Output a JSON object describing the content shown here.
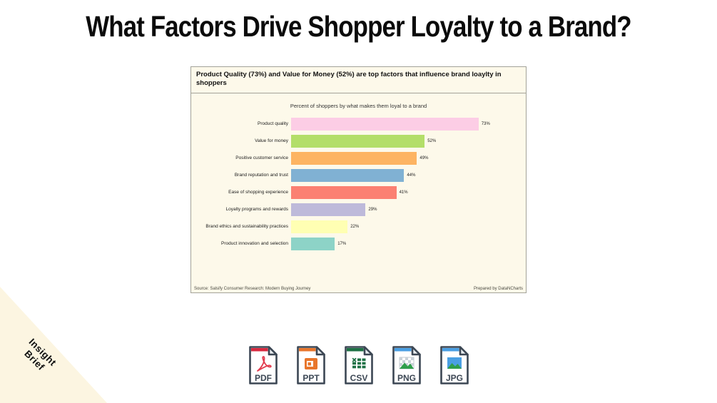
{
  "page": {
    "title": "What Factors Drive Shopper Loyalty to a Brand?",
    "background": "#ffffff"
  },
  "chart_card": {
    "headline": "Product Quality (73%) and Value for Money (52%) are top factors that influence brand loaylty in shoppers",
    "source": "Source: Salsify Consumer Research: Modern Buying Journey",
    "credit": "Prepared by DataNCharts",
    "background": "#fdf9ea",
    "border_color": "#a3a399"
  },
  "chart_data": {
    "type": "bar",
    "orientation": "horizontal",
    "title": "Percent of shoppers by what makes them loyal to a brand",
    "categories": [
      "Product quality",
      "Value for money",
      "Positive customer service",
      "Brand reputation and trust",
      "Ease of shopping experience",
      "Loyalty programs and rewards",
      "Brand ethics and sustainability practices",
      "Product innovation and selection"
    ],
    "values": [
      73,
      52,
      49,
      44,
      41,
      29,
      22,
      17
    ],
    "value_labels": [
      "73%",
      "52%",
      "49%",
      "44%",
      "41%",
      "29%",
      "22%",
      "17%"
    ],
    "bar_colors": [
      "#FCCDE5",
      "#B3DE69",
      "#FDB462",
      "#80B1D3",
      "#FB8072",
      "#BEBADA",
      "#FFFFB3",
      "#8DD3C7"
    ],
    "xlabel": "",
    "ylabel": "",
    "xlim": [
      0,
      100
    ],
    "grid": false,
    "legend": false,
    "value_label_position": "right-of-bar"
  },
  "downloads": [
    {
      "label": "PDF",
      "accent": "#D8293F",
      "icon": "pdf-file-icon"
    },
    {
      "label": "PPT",
      "accent": "#E8762C",
      "icon": "ppt-file-icon"
    },
    {
      "label": "CSV",
      "accent": "#1E7145",
      "icon": "csv-file-icon"
    },
    {
      "label": "PNG",
      "accent": "#4A9FE3",
      "icon": "png-file-icon"
    },
    {
      "label": "JPG",
      "accent": "#4A9FE3",
      "icon": "jpg-file-icon"
    }
  ],
  "ribbon": {
    "line1": "Insight",
    "line2": "Brief",
    "background": "#fcf5e1"
  }
}
